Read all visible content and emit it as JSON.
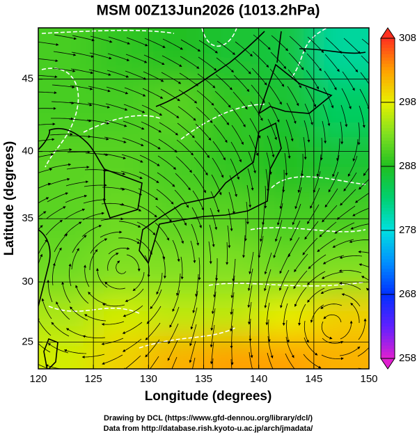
{
  "chart_data": {
    "type": "map",
    "title": "MSM 00Z13Jun2026 (1013.2hPa)",
    "x_label": "Longitude (degrees)",
    "y_label": "Latitude  (degrees)",
    "footer": [
      "Drawing by DCL (https://www.gfd-dennou.org/library/dcl/)",
      "Data from http://database.rish.kyoto-u.ac.jp/arch/jmadata/"
    ],
    "projection": "mercator",
    "xlim": [
      120,
      150
    ],
    "ylim": [
      22.7,
      48.3
    ],
    "xticks": [
      120,
      125,
      130,
      135,
      140,
      145,
      150
    ],
    "yticks": [
      25,
      30,
      35,
      40,
      45
    ],
    "grid": true,
    "field": {
      "lon": [
        122.5,
        127.5,
        132.5,
        137.5,
        142.5,
        147.5
      ],
      "lat": [
        47,
        43,
        39,
        35,
        31,
        27,
        24
      ],
      "values": [
        [
          290,
          289,
          288,
          287,
          286,
          281
        ],
        [
          290,
          290,
          291,
          289,
          287,
          284
        ],
        [
          291,
          291,
          290,
          289,
          288,
          287
        ],
        [
          291,
          292,
          291,
          291,
          290,
          290
        ],
        [
          292,
          293,
          293,
          293,
          292,
          293
        ],
        [
          295,
          297,
          296,
          296,
          298,
          300
        ],
        [
          297,
          300,
          302,
          303,
          303,
          302
        ]
      ]
    },
    "colorbar": {
      "lim": [
        258,
        308
      ],
      "ticks": [
        258,
        268,
        278,
        288,
        298,
        308
      ],
      "colors": [
        "#e020d0",
        "#6020ff",
        "#0030ff",
        "#0090ff",
        "#00e0e0",
        "#00d070",
        "#20c020",
        "#80e020",
        "#e8f000",
        "#ffa000",
        "#ff3020"
      ]
    }
  }
}
